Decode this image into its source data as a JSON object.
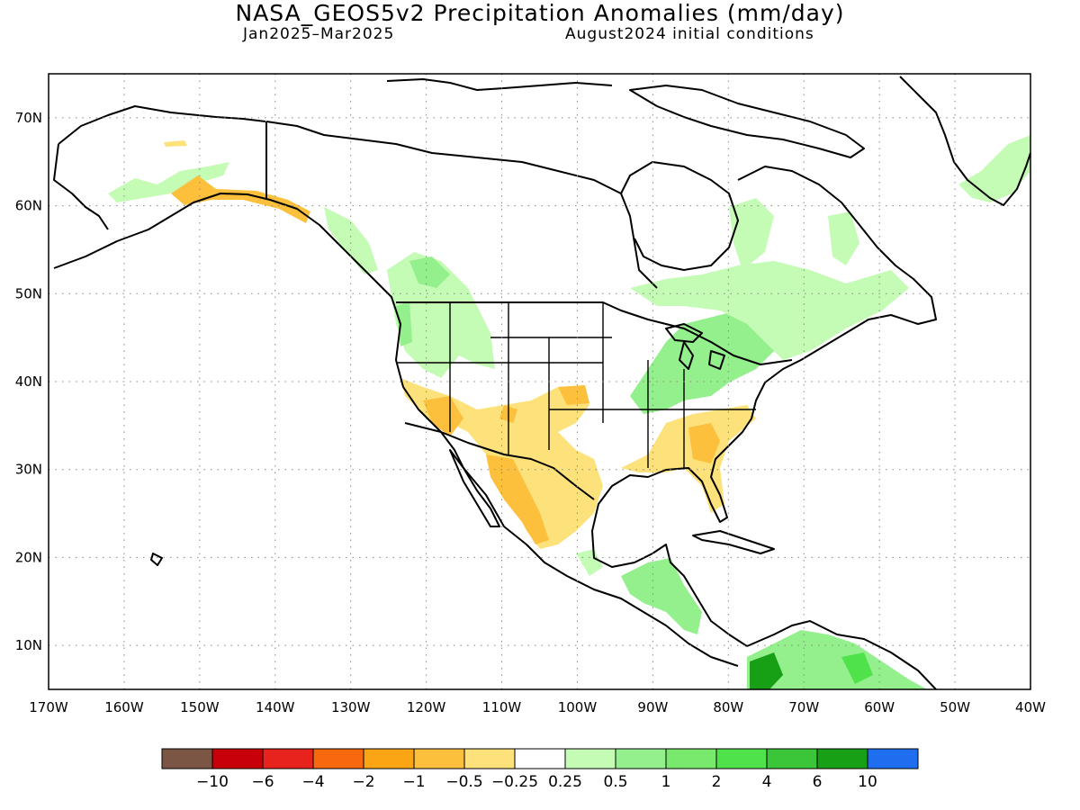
{
  "title": "NASA_GEOS5v2 Precipitation Anomalies (mm/day)",
  "subtitle_left": "Jan2025–Mar2025",
  "subtitle_right": "August2024 initial conditions",
  "lon_ticks": [
    "170W",
    "160W",
    "150W",
    "140W",
    "130W",
    "120W",
    "110W",
    "100W",
    "90W",
    "80W",
    "70W",
    "60W",
    "50W",
    "40W"
  ],
  "lat_ticks": [
    "70N",
    "60N",
    "50N",
    "40N",
    "30N",
    "20N",
    "10N"
  ],
  "colorbar": {
    "colors": [
      "#7b5645",
      "#c8000a",
      "#e8231e",
      "#f8680e",
      "#fba514",
      "#fcc03c",
      "#fde17a",
      "#ffffff",
      "#c4fbb5",
      "#94f08c",
      "#78e96c",
      "#50e24a",
      "#3bc63a",
      "#17a016",
      "#1f6ef0"
    ],
    "labels": [
      "−10",
      "−6",
      "−4",
      "−2",
      "−1",
      "−0.5",
      "−0.25",
      "0.25",
      "0.5",
      "1",
      "2",
      "4",
      "6",
      "10"
    ]
  },
  "anomaly_colors": {
    "dry_weak": "#fde17a",
    "dry_moderate": "#fcc03c",
    "dry_strong": "#fba514",
    "wet_weak": "#c4fbb5",
    "wet_moderate": "#94f08c",
    "wet_strong": "#50e24a",
    "wet_very_strong": "#17a016"
  }
}
